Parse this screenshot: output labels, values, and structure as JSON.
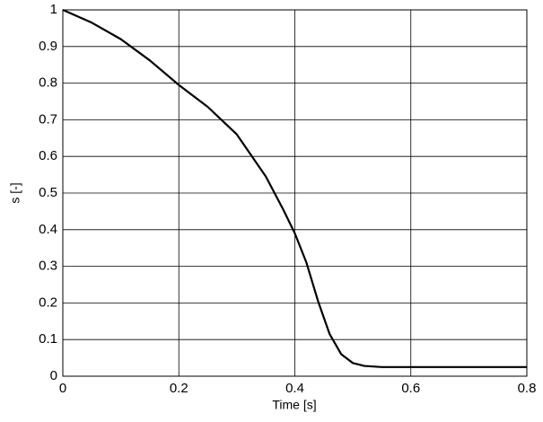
{
  "chart_data": {
    "type": "line",
    "x_label": "Time [s]",
    "y_label": "s [-]",
    "x": [
      0,
      0.05,
      0.1,
      0.15,
      0.2,
      0.25,
      0.3,
      0.35,
      0.38,
      0.4,
      0.42,
      0.44,
      0.46,
      0.48,
      0.5,
      0.52,
      0.55,
      0.6,
      0.7,
      0.8
    ],
    "series": [
      {
        "name": "s",
        "color": "#000000",
        "values": [
          1,
          0.965,
          0.92,
          0.862,
          0.795,
          0.735,
          0.66,
          0.545,
          0.455,
          0.39,
          0.31,
          0.205,
          0.115,
          0.06,
          0.036,
          0.028,
          0.025,
          0.025,
          0.025,
          0.025
        ]
      }
    ],
    "xlim": [
      0,
      0.8
    ],
    "xticks": [
      0,
      0.2,
      0.4,
      0.6,
      0.8
    ],
    "ylim": [
      0,
      1
    ],
    "yticks": [
      0,
      0.1,
      0.2,
      0.3,
      0.4,
      0.5,
      0.6,
      0.7,
      0.8,
      0.9,
      1
    ],
    "grid": true
  }
}
